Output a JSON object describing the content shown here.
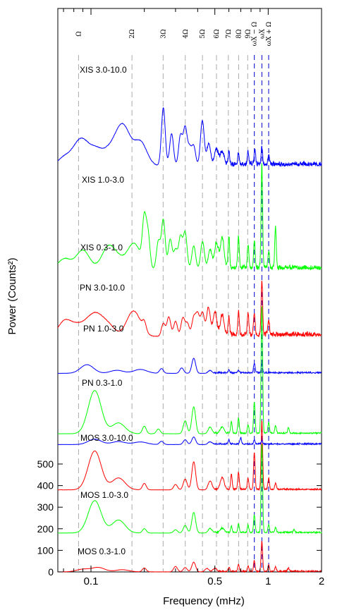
{
  "chart_data": {
    "type": "line",
    "title": "",
    "xlabel": "Frequency (mHz)",
    "ylabel": "Power (Counts²)",
    "x_scale": "log",
    "xlim": [
      0.065,
      2.0
    ],
    "ylim_bottom_panel": [
      0,
      560
    ],
    "x_ticks": [
      {
        "value": 0.1,
        "label": "0.1"
      },
      {
        "value": 0.5,
        "label": "0.5"
      },
      {
        "value": 1,
        "label": "1"
      },
      {
        "value": 2,
        "label": "2"
      }
    ],
    "y_ticks": [
      {
        "value": 0,
        "label": "0"
      },
      {
        "value": 100,
        "label": "100"
      },
      {
        "value": 200,
        "label": "200"
      },
      {
        "value": 300,
        "label": "300"
      },
      {
        "value": 400,
        "label": "400"
      },
      {
        "value": 500,
        "label": "500"
      }
    ],
    "harmonics": [
      {
        "label": "Ω",
        "freq": 0.0851
      },
      {
        "label": "2Ω",
        "freq": 0.1703
      },
      {
        "label": "3Ω",
        "freq": 0.2554
      },
      {
        "label": "4Ω",
        "freq": 0.3405
      },
      {
        "label": "5Ω",
        "freq": 0.4257
      },
      {
        "label": "6Ω",
        "freq": 0.5108
      },
      {
        "label": "7Ω",
        "freq": 0.5959
      },
      {
        "label": "8Ω",
        "freq": 0.681
      },
      {
        "label": "9Ω",
        "freq": 0.7662
      }
    ],
    "spin_lines": [
      {
        "label": "ωX − Ω",
        "freq": 0.835
      },
      {
        "label": "ωX",
        "freq": 0.921
      },
      {
        "label": "ωX + Ω",
        "freq": 1.006
      }
    ],
    "series": [
      {
        "name": "XIS 3.0-10.0",
        "color": "#0000ff",
        "offset": 1880,
        "peaks": [
          [
            0.071,
            40
          ],
          [
            0.083,
            50
          ],
          [
            0.09,
            85
          ],
          [
            0.106,
            70
          ],
          [
            0.125,
            55
          ],
          [
            0.143,
            95
          ],
          [
            0.156,
            120
          ],
          [
            0.19,
            110
          ],
          [
            0.256,
            270
          ],
          [
            0.285,
            150
          ],
          [
            0.32,
            140
          ],
          [
            0.34,
            175
          ],
          [
            0.36,
            80
          ],
          [
            0.38,
            90
          ],
          [
            0.425,
            210
          ],
          [
            0.462,
            100
          ],
          [
            0.51,
            70
          ],
          [
            0.55,
            60
          ],
          [
            0.6,
            60
          ],
          [
            0.68,
            50
          ],
          [
            0.77,
            55
          ],
          [
            0.84,
            65
          ],
          [
            0.921,
            75
          ],
          [
            1.006,
            45
          ]
        ]
      },
      {
        "name": "XIS 1.0-3.0",
        "color": "#00ff00",
        "offset": 1400,
        "peaks": [
          [
            0.071,
            50
          ],
          [
            0.09,
            90
          ],
          [
            0.125,
            100
          ],
          [
            0.143,
            40
          ],
          [
            0.175,
            120
          ],
          [
            0.2,
            210
          ],
          [
            0.21,
            150
          ],
          [
            0.24,
            130
          ],
          [
            0.256,
            230
          ],
          [
            0.28,
            140
          ],
          [
            0.3,
            90
          ],
          [
            0.32,
            150
          ],
          [
            0.34,
            170
          ],
          [
            0.38,
            110
          ],
          [
            0.426,
            130
          ],
          [
            0.47,
            90
          ],
          [
            0.51,
            115
          ],
          [
            0.55,
            140
          ],
          [
            0.6,
            150
          ],
          [
            0.68,
            150
          ],
          [
            0.77,
            110
          ],
          [
            0.835,
            130
          ],
          [
            0.921,
            480
          ],
          [
            1.006,
            80
          ],
          [
            1.1,
            190
          ]
        ]
      },
      {
        "name": "XIS 0.3-1.0",
        "color": "#ff0000",
        "offset": 1090,
        "peaks": [
          [
            0.071,
            70
          ],
          [
            0.083,
            40
          ],
          [
            0.096,
            50
          ],
          [
            0.108,
            80
          ],
          [
            0.125,
            50
          ],
          [
            0.17,
            75
          ],
          [
            0.18,
            50
          ],
          [
            0.2,
            40
          ],
          [
            0.256,
            60
          ],
          [
            0.275,
            90
          ],
          [
            0.3,
            70
          ],
          [
            0.33,
            85
          ],
          [
            0.35,
            60
          ],
          [
            0.38,
            85
          ],
          [
            0.4,
            100
          ],
          [
            0.426,
            110
          ],
          [
            0.46,
            130
          ],
          [
            0.5,
            105
          ],
          [
            0.55,
            90
          ],
          [
            0.6,
            85
          ],
          [
            0.68,
            110
          ],
          [
            0.77,
            95
          ],
          [
            0.835,
            105
          ],
          [
            0.921,
            250
          ],
          [
            1.006,
            70
          ]
        ]
      },
      {
        "name": "PN 3.0-10.0",
        "color": "#0000ff",
        "offset": 920,
        "peaks": [
          [
            0.095,
            40
          ],
          [
            0.14,
            14
          ],
          [
            0.19,
            18
          ],
          [
            0.25,
            22
          ],
          [
            0.325,
            25
          ],
          [
            0.38,
            70
          ],
          [
            0.47,
            12
          ],
          [
            0.6,
            14
          ],
          [
            0.68,
            12
          ],
          [
            0.835,
            45
          ],
          [
            0.921,
            40
          ]
        ]
      },
      {
        "name": "PN 1.0-3.0",
        "color": "#00ff00",
        "offset": 640,
        "peaks": [
          [
            0.105,
            200
          ],
          [
            0.143,
            50
          ],
          [
            0.2,
            35
          ],
          [
            0.24,
            22
          ],
          [
            0.34,
            60
          ],
          [
            0.38,
            125
          ],
          [
            0.47,
            30
          ],
          [
            0.55,
            30
          ],
          [
            0.62,
            55
          ],
          [
            0.68,
            70
          ],
          [
            0.77,
            40
          ],
          [
            0.835,
            145
          ],
          [
            0.921,
            590
          ],
          [
            1.006,
            50
          ],
          [
            1.1,
            35
          ],
          [
            1.3,
            25
          ]
        ]
      },
      {
        "name": "PN 0.3-1.0",
        "color": "#ff0000",
        "offset": 380,
        "peaks": [
          [
            0.105,
            180
          ],
          [
            0.143,
            55
          ],
          [
            0.2,
            30
          ],
          [
            0.3,
            25
          ],
          [
            0.34,
            50
          ],
          [
            0.38,
            130
          ],
          [
            0.47,
            40
          ],
          [
            0.55,
            55
          ],
          [
            0.62,
            70
          ],
          [
            0.68,
            80
          ],
          [
            0.77,
            50
          ],
          [
            0.835,
            170
          ],
          [
            0.921,
            320
          ],
          [
            1.006,
            50
          ],
          [
            1.1,
            30
          ]
        ]
      },
      {
        "name": "MOS 3.0-10.0",
        "color": "#0000ff",
        "offset": 590,
        "peaks": [
          [
            0.105,
            25
          ],
          [
            0.143,
            14
          ],
          [
            0.19,
            12
          ],
          [
            0.25,
            15
          ],
          [
            0.34,
            22
          ],
          [
            0.38,
            35
          ],
          [
            0.47,
            12
          ],
          [
            0.6,
            20
          ],
          [
            0.7,
            30
          ],
          [
            0.835,
            18
          ],
          [
            0.921,
            15
          ]
        ]
      },
      {
        "name": "MOS 1.0-3.0",
        "color": "#00ff00",
        "offset": 180,
        "peaks": [
          [
            0.105,
            150
          ],
          [
            0.143,
            60
          ],
          [
            0.2,
            20
          ],
          [
            0.3,
            15
          ],
          [
            0.34,
            35
          ],
          [
            0.38,
            95
          ],
          [
            0.47,
            20
          ],
          [
            0.55,
            20
          ],
          [
            0.62,
            30
          ],
          [
            0.68,
            40
          ],
          [
            0.77,
            35
          ],
          [
            0.835,
            80
          ],
          [
            0.921,
            410
          ],
          [
            1.006,
            35
          ],
          [
            1.1,
            25
          ],
          [
            1.4,
            15
          ]
        ]
      },
      {
        "name": "MOS 0.3-1.0",
        "color": "#ff0000",
        "offset": 0,
        "peaks": [
          [
            0.09,
            12
          ],
          [
            0.11,
            20
          ],
          [
            0.15,
            10
          ],
          [
            0.2,
            18
          ],
          [
            0.3,
            25
          ],
          [
            0.34,
            20
          ],
          [
            0.38,
            45
          ],
          [
            0.45,
            15
          ],
          [
            0.5,
            15
          ],
          [
            0.6,
            20
          ],
          [
            0.68,
            30
          ],
          [
            0.77,
            25
          ],
          [
            0.835,
            50
          ],
          [
            0.921,
            140
          ],
          [
            1.006,
            30
          ],
          [
            1.1,
            20
          ],
          [
            1.3,
            15
          ]
        ]
      }
    ]
  }
}
